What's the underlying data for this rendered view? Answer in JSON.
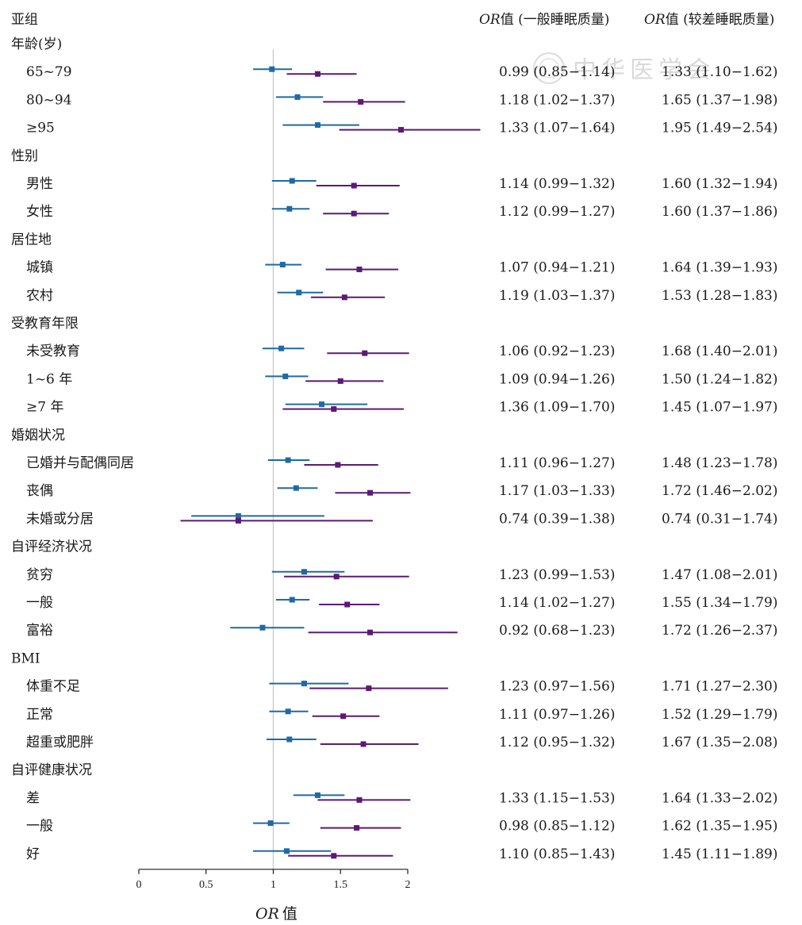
{
  "chart_data": {
    "type": "forest",
    "header": {
      "subgroup": "亚组",
      "or_prefix": "OR",
      "col_general": "值 (一般睡眠质量)",
      "col_poor": "值 (较差睡眠质量)"
    },
    "xlabel_prefix": "OR",
    "xlabel_suffix": "值",
    "xlim": [
      0,
      2
    ],
    "xticks": [
      {
        "value": 0,
        "label": "0"
      },
      {
        "value": 0.5,
        "label": "0.5"
      },
      {
        "value": 1,
        "label": "1"
      },
      {
        "value": 1.5,
        "label": "1.5"
      },
      {
        "value": 2,
        "label": "2"
      }
    ],
    "reference_line": 1,
    "series": [
      {
        "key": "general",
        "color": "#1f6aa5"
      },
      {
        "key": "poor",
        "color": "#5b1a73"
      }
    ],
    "groups": [
      {
        "title": "年龄(岁)",
        "rows": [
          {
            "label": "65~79",
            "general": {
              "or": 0.99,
              "lo": 0.85,
              "hi": 1.14,
              "text": "0.99 (0.85−1.14)"
            },
            "poor": {
              "or": 1.33,
              "lo": 1.1,
              "hi": 1.62,
              "text": "1.33 (1.10−1.62)"
            }
          },
          {
            "label": "80~94",
            "general": {
              "or": 1.18,
              "lo": 1.02,
              "hi": 1.37,
              "text": "1.18 (1.02−1.37)"
            },
            "poor": {
              "or": 1.65,
              "lo": 1.37,
              "hi": 1.98,
              "text": "1.65 (1.37−1.98)"
            }
          },
          {
            "label": "≥95",
            "general": {
              "or": 1.33,
              "lo": 1.07,
              "hi": 1.64,
              "text": "1.33 (1.07−1.64)"
            },
            "poor": {
              "or": 1.95,
              "lo": 1.49,
              "hi": 2.54,
              "text": "1.95 (1.49−2.54)"
            }
          }
        ]
      },
      {
        "title": "性别",
        "rows": [
          {
            "label": "男性",
            "general": {
              "or": 1.14,
              "lo": 0.99,
              "hi": 1.32,
              "text": "1.14 (0.99−1.32)"
            },
            "poor": {
              "or": 1.6,
              "lo": 1.32,
              "hi": 1.94,
              "text": "1.60 (1.32−1.94)"
            }
          },
          {
            "label": "女性",
            "general": {
              "or": 1.12,
              "lo": 0.99,
              "hi": 1.27,
              "text": "1.12 (0.99−1.27)"
            },
            "poor": {
              "or": 1.6,
              "lo": 1.37,
              "hi": 1.86,
              "text": "1.60 (1.37−1.86)"
            }
          }
        ]
      },
      {
        "title": "居住地",
        "rows": [
          {
            "label": "城镇",
            "general": {
              "or": 1.07,
              "lo": 0.94,
              "hi": 1.21,
              "text": "1.07 (0.94−1.21)"
            },
            "poor": {
              "or": 1.64,
              "lo": 1.39,
              "hi": 1.93,
              "text": "1.64 (1.39−1.93)"
            }
          },
          {
            "label": "农村",
            "general": {
              "or": 1.19,
              "lo": 1.03,
              "hi": 1.37,
              "text": "1.19 (1.03−1.37)"
            },
            "poor": {
              "or": 1.53,
              "lo": 1.28,
              "hi": 1.83,
              "text": "1.53 (1.28−1.83)"
            }
          }
        ]
      },
      {
        "title": "受教育年限",
        "rows": [
          {
            "label": "未受教育",
            "general": {
              "or": 1.06,
              "lo": 0.92,
              "hi": 1.23,
              "text": "1.06 (0.92−1.23)"
            },
            "poor": {
              "or": 1.68,
              "lo": 1.4,
              "hi": 2.01,
              "text": "1.68 (1.40−2.01)"
            }
          },
          {
            "label": "1~6 年",
            "general": {
              "or": 1.09,
              "lo": 0.94,
              "hi": 1.26,
              "text": "1.09 (0.94−1.26)"
            },
            "poor": {
              "or": 1.5,
              "lo": 1.24,
              "hi": 1.82,
              "text": "1.50 (1.24−1.82)"
            }
          },
          {
            "label": "≥7 年",
            "general": {
              "or": 1.36,
              "lo": 1.09,
              "hi": 1.7,
              "text": "1.36 (1.09−1.70)"
            },
            "poor": {
              "or": 1.45,
              "lo": 1.07,
              "hi": 1.97,
              "text": "1.45 (1.07−1.97)"
            }
          }
        ]
      },
      {
        "title": "婚姻状况",
        "rows": [
          {
            "label": "已婚并与配偶同居",
            "general": {
              "or": 1.11,
              "lo": 0.96,
              "hi": 1.27,
              "text": "1.11 (0.96−1.27)"
            },
            "poor": {
              "or": 1.48,
              "lo": 1.23,
              "hi": 1.78,
              "text": "1.48 (1.23−1.78)"
            }
          },
          {
            "label": "丧偶",
            "general": {
              "or": 1.17,
              "lo": 1.03,
              "hi": 1.33,
              "text": "1.17 (1.03−1.33)"
            },
            "poor": {
              "or": 1.72,
              "lo": 1.46,
              "hi": 2.02,
              "text": "1.72 (1.46−2.02)"
            }
          },
          {
            "label": "未婚或分居",
            "general": {
              "or": 0.74,
              "lo": 0.39,
              "hi": 1.38,
              "text": "0.74 (0.39−1.38)"
            },
            "poor": {
              "or": 0.74,
              "lo": 0.31,
              "hi": 1.74,
              "text": "0.74 (0.31−1.74)"
            }
          }
        ]
      },
      {
        "title": "自评经济状况",
        "rows": [
          {
            "label": "贫穷",
            "general": {
              "or": 1.23,
              "lo": 0.99,
              "hi": 1.53,
              "text": "1.23 (0.99−1.53)"
            },
            "poor": {
              "or": 1.47,
              "lo": 1.08,
              "hi": 2.01,
              "text": "1.47 (1.08−2.01)"
            }
          },
          {
            "label": "一般",
            "general": {
              "or": 1.14,
              "lo": 1.02,
              "hi": 1.27,
              "text": "1.14 (1.02−1.27)"
            },
            "poor": {
              "or": 1.55,
              "lo": 1.34,
              "hi": 1.79,
              "text": "1.55 (1.34−1.79)"
            }
          },
          {
            "label": "富裕",
            "general": {
              "or": 0.92,
              "lo": 0.68,
              "hi": 1.23,
              "text": "0.92 (0.68−1.23)"
            },
            "poor": {
              "or": 1.72,
              "lo": 1.26,
              "hi": 2.37,
              "text": "1.72 (1.26−2.37)"
            }
          }
        ]
      },
      {
        "title": "BMI",
        "rows": [
          {
            "label": "体重不足",
            "general": {
              "or": 1.23,
              "lo": 0.97,
              "hi": 1.56,
              "text": "1.23 (0.97−1.56)"
            },
            "poor": {
              "or": 1.71,
              "lo": 1.27,
              "hi": 2.3,
              "text": "1.71 (1.27−2.30)"
            }
          },
          {
            "label": "正常",
            "general": {
              "or": 1.11,
              "lo": 0.97,
              "hi": 1.26,
              "text": "1.11 (0.97−1.26)"
            },
            "poor": {
              "or": 1.52,
              "lo": 1.29,
              "hi": 1.79,
              "text": "1.52 (1.29−1.79)"
            }
          },
          {
            "label": "超重或肥胖",
            "general": {
              "or": 1.12,
              "lo": 0.95,
              "hi": 1.32,
              "text": "1.12 (0.95−1.32)"
            },
            "poor": {
              "or": 1.67,
              "lo": 1.35,
              "hi": 2.08,
              "text": "1.67 (1.35−2.08)"
            }
          }
        ]
      },
      {
        "title": "自评健康状况",
        "rows": [
          {
            "label": "差",
            "general": {
              "or": 1.33,
              "lo": 1.15,
              "hi": 1.53,
              "text": "1.33 (1.15−1.53)"
            },
            "poor": {
              "or": 1.64,
              "lo": 1.33,
              "hi": 2.02,
              "text": "1.64 (1.33−2.02)"
            }
          },
          {
            "label": "一般",
            "general": {
              "or": 0.98,
              "lo": 0.85,
              "hi": 1.12,
              "text": "0.98 (0.85−1.12)"
            },
            "poor": {
              "or": 1.62,
              "lo": 1.35,
              "hi": 1.95,
              "text": "1.62 (1.35−1.95)"
            }
          },
          {
            "label": "好",
            "general": {
              "or": 1.1,
              "lo": 0.85,
              "hi": 1.43,
              "text": "1.10 (0.85−1.43)"
            },
            "poor": {
              "or": 1.45,
              "lo": 1.11,
              "hi": 1.89,
              "text": "1.45 (1.11−1.89)"
            }
          }
        ]
      }
    ]
  },
  "watermark": "中华医学会"
}
